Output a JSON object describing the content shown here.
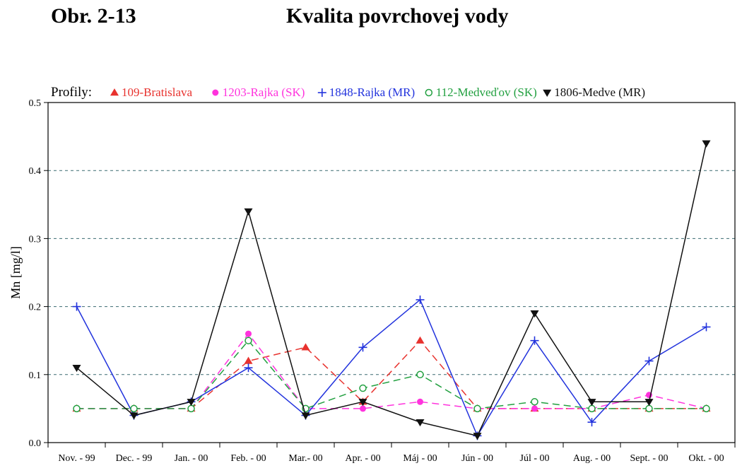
{
  "header": {
    "figure_label": "Obr. 2-13",
    "title": "Kvalita povrchovej vody"
  },
  "chart_data": {
    "type": "line",
    "ylabel": "Mn [mg/l]",
    "ylim": [
      0,
      0.5
    ],
    "yticks": [
      0.0,
      0.1,
      0.2,
      0.3,
      0.4,
      0.5
    ],
    "ytick_labels": [
      "0.0",
      "0.1",
      "0.2",
      "0.3",
      "0.4",
      "0.5"
    ],
    "grid": "horizontal-dashed",
    "legend_prefix": "Profily:",
    "legend_position": "top",
    "categories": [
      "Nov. - 99",
      "Dec. - 99",
      "Jan. - 00",
      "Feb. - 00",
      "Mar.- 00",
      "Apr. - 00",
      "Máj - 00",
      "Jún - 00",
      "Júl - 00",
      "Aug. - 00",
      "Sept. - 00",
      "Okt. - 00"
    ],
    "series": [
      {
        "name": "109-Bratislava",
        "color": "#e8322e",
        "marker": "triangle-up",
        "dash": "dashed",
        "values": [
          0.05,
          0.05,
          0.05,
          0.12,
          0.14,
          0.06,
          0.15,
          0.05,
          0.05,
          0.05,
          0.05,
          0.05
        ]
      },
      {
        "name": "1203-Rajka (SK)",
        "color": "#ff33dd",
        "marker": "dot",
        "dash": "dashed",
        "values": [
          0.05,
          0.05,
          0.05,
          0.16,
          0.05,
          0.05,
          0.06,
          0.05,
          0.05,
          0.05,
          0.07,
          0.05
        ]
      },
      {
        "name": "1848-Rajka (MR)",
        "color": "#2233dd",
        "marker": "plus",
        "dash": "solid",
        "values": [
          0.2,
          0.04,
          0.06,
          0.11,
          0.04,
          0.14,
          0.21,
          0.01,
          0.15,
          0.03,
          0.12,
          0.17
        ]
      },
      {
        "name": "112-Medveďov (SK)",
        "color": "#22a040",
        "marker": "circle-open",
        "dash": "dashed",
        "values": [
          0.05,
          0.05,
          0.05,
          0.15,
          0.05,
          0.08,
          0.1,
          0.05,
          0.06,
          0.05,
          0.05,
          0.05
        ]
      },
      {
        "name": "1806-Medve (MR)",
        "color": "#111111",
        "marker": "triangle-down",
        "dash": "solid",
        "values": [
          0.11,
          0.04,
          0.06,
          0.34,
          0.04,
          0.06,
          0.03,
          0.01,
          0.19,
          0.06,
          0.06,
          0.44
        ]
      }
    ]
  }
}
